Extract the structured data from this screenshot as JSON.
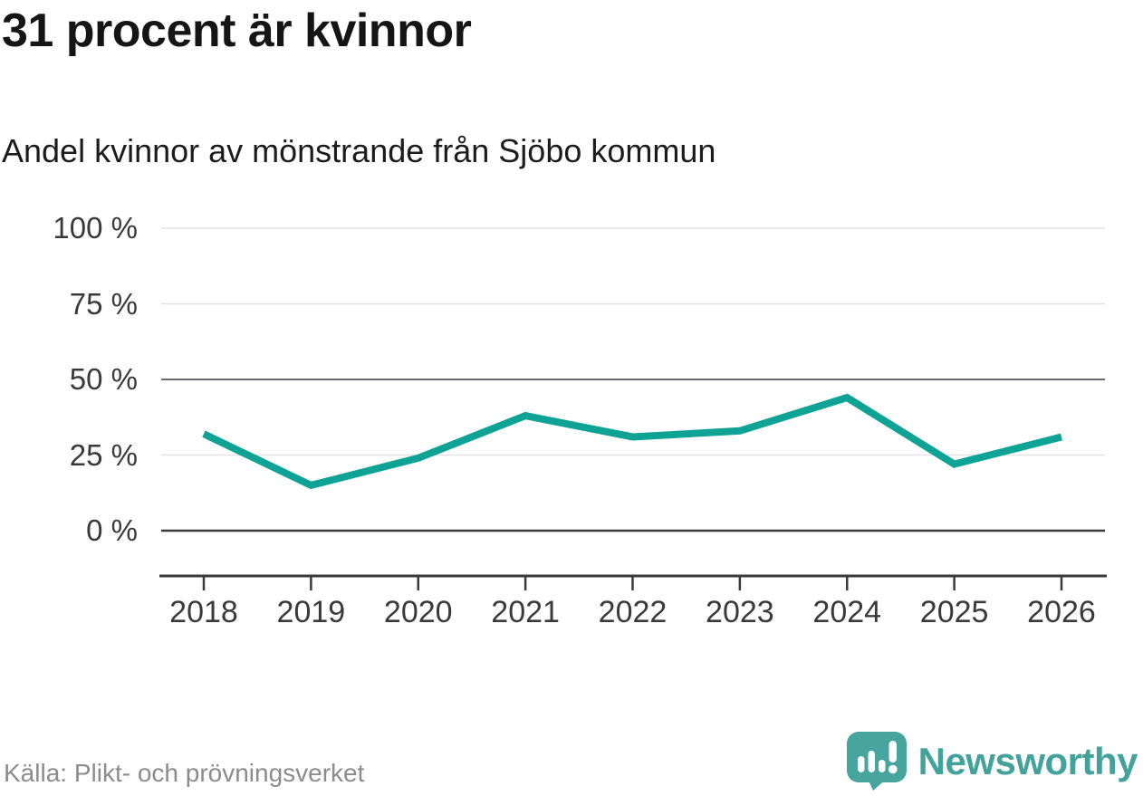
{
  "header": {
    "title": "31 procent är kvinnor",
    "subtitle": "Andel kvinnor av mönstrande från Sjöbo kommun"
  },
  "chart_data": {
    "type": "line",
    "title": "31 procent är kvinnor",
    "subtitle": "Andel kvinnor av mönstrande från Sjöbo kommun",
    "categories": [
      "2018",
      "2019",
      "2020",
      "2021",
      "2022",
      "2023",
      "2024",
      "2025",
      "2026"
    ],
    "series": [
      {
        "name": "Andel kvinnor av mönstrande",
        "values": [
          32,
          15,
          24,
          38,
          31,
          33,
          44,
          22,
          31
        ]
      }
    ],
    "unit": "%",
    "xlabel": "",
    "ylabel": "",
    "ylim": [
      0,
      100
    ],
    "yticks": [
      0,
      25,
      50,
      75,
      100
    ],
    "ytick_labels": [
      "0 %",
      "25 %",
      "50 %",
      "75 %",
      "100 %"
    ],
    "grid": "horizontal",
    "legend": "none",
    "line_color": "#0FA396"
  },
  "footer": {
    "source": "Källa: Plikt- och prövningsverket",
    "brand": "Newsworthy"
  },
  "colors": {
    "line": "#0FA396",
    "brand_teal": "#43A29B",
    "axis_dark": "#3A3A3C",
    "grid_light": "#E3E3E3",
    "grid_mid": "#55565C",
    "text_dark": "#151515",
    "text_muted": "#8C8C8C"
  }
}
